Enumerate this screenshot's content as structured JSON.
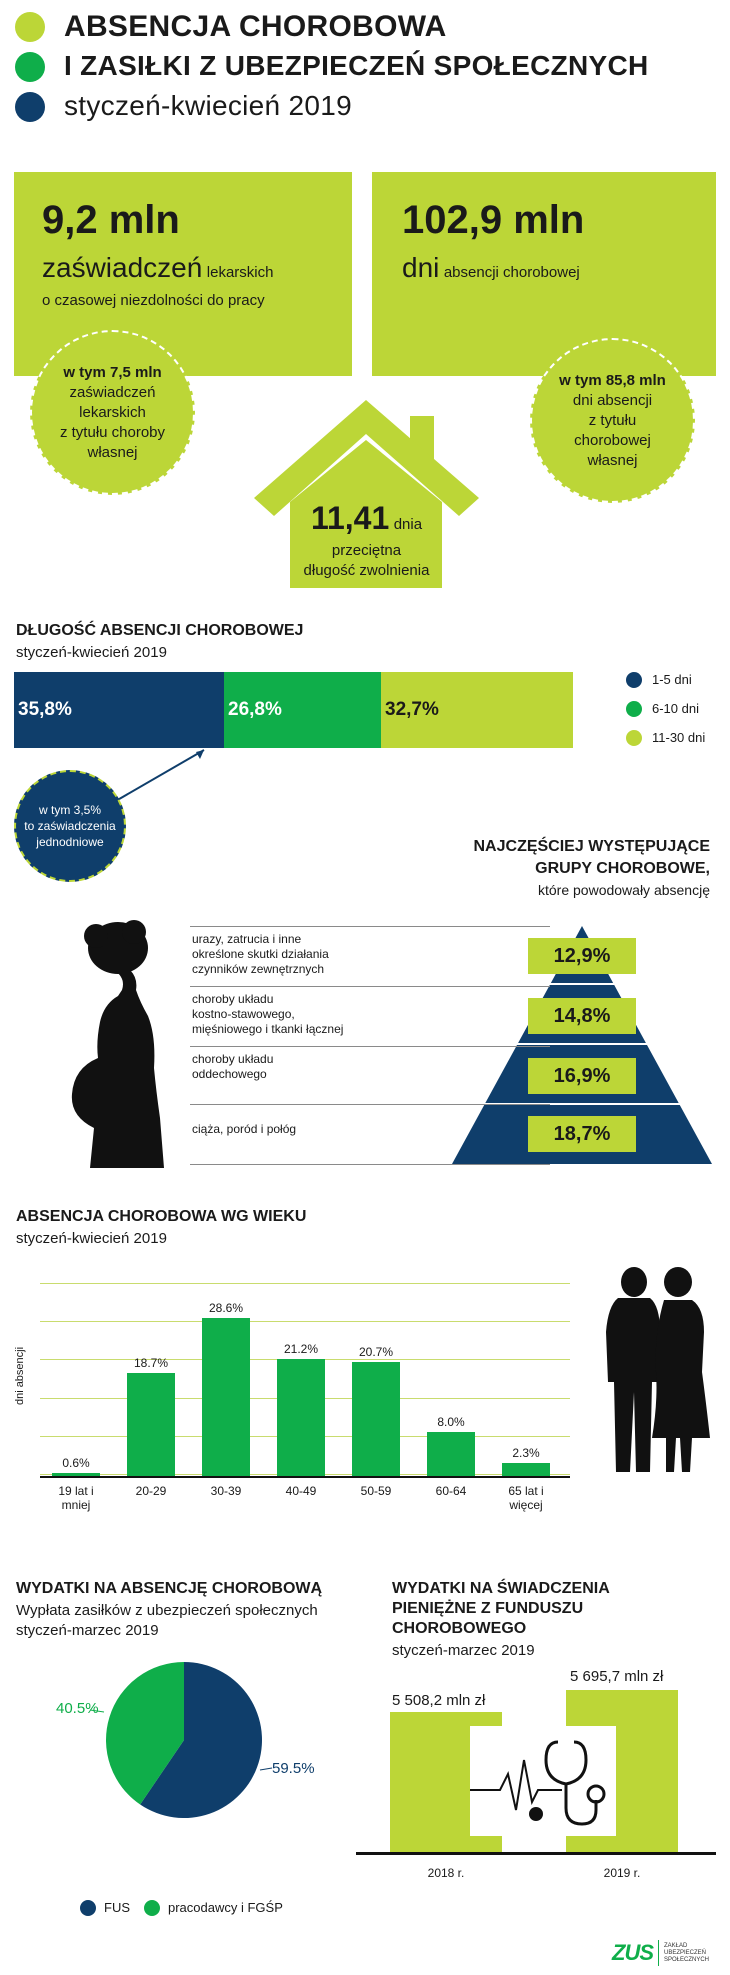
{
  "header": {
    "line1": "ABSENCJA CHOROBOWA",
    "line2": "I ZASIŁKI Z UBEZPIECZEŃ SPOŁECZNYCH",
    "line3": "styczeń-kwiecień 2019",
    "colors": {
      "lime": "#bcd637",
      "green": "#0fae4a",
      "navy": "#0f3e6b"
    }
  },
  "stats": {
    "left": {
      "number": "9,2 mln",
      "word": "zaświadczeń",
      "word_small": "lekarskich",
      "line2": "o czasowej niezdolności do pracy"
    },
    "right": {
      "number": "102,9 mln",
      "word": "dni",
      "word_small": "absencji chorobowej"
    },
    "left_circle": {
      "bold": "w tym 7,5 mln",
      "l1": "zaświadczeń",
      "l2": "lekarskich",
      "l3": "z tytułu choroby",
      "l4": "własnej"
    },
    "right_circle": {
      "bold": "w tym 85,8 mln",
      "l1": "dni absencji",
      "l2": "z tytułu",
      "l3": "chorobowej",
      "l4": "własnej"
    },
    "house": {
      "number": "11,41",
      "unit": "dnia",
      "l1": "przeciętna",
      "l2": "długość zwolnienia"
    }
  },
  "duration": {
    "title": "DŁUGOŚĆ ABSENCJI CHOROBOWEJ",
    "subtitle": "styczeń-kwiecień 2019",
    "segments": [
      {
        "label": "35,8%",
        "value": 35.8,
        "color": "#0f3e6b"
      },
      {
        "label": "26,8%",
        "value": 26.8,
        "color": "#0fae4a"
      },
      {
        "label": "32,7%",
        "value": 32.7,
        "color": "#bcd637"
      }
    ],
    "legend": [
      {
        "label": "1-5 dni",
        "color": "#0f3e6b"
      },
      {
        "label": "6-10 dni",
        "color": "#0fae4a"
      },
      {
        "label": "11-30 dni",
        "color": "#bcd637"
      }
    ],
    "note": {
      "l1": "w tym 3,5%",
      "l2": "to zaświadczenia",
      "l3": "jednodniowe"
    }
  },
  "groups": {
    "title1": "NAJCZĘŚCIEJ WYSTĘPUJĄCE",
    "title2": "GRUPY CHOROBOWE,",
    "subtitle": "które powodowały absencję",
    "items": [
      {
        "l1": "urazy, zatrucia i inne",
        "l2": "określone skutki działania",
        "l3": "czynników zewnętrznych",
        "value": "12,9%"
      },
      {
        "l1": "choroby układu",
        "l2": "kostno-stawowego,",
        "l3": "mięśniowego i tkanki łącznej",
        "value": "14,8%"
      },
      {
        "l1": "choroby układu",
        "l2": "oddechowego",
        "l3": "",
        "value": "16,9%"
      },
      {
        "l1": "ciąża, poród i połóg",
        "l2": "",
        "l3": "",
        "value": "18,7%"
      }
    ]
  },
  "chart_data": {
    "type": "bar",
    "title": "ABSENCJA CHOROBOWA WG WIEKU",
    "subtitle": "styczeń-kwiecień 2019",
    "ylabel": "dni absencji",
    "categories": [
      [
        "19 lat i",
        "mniej"
      ],
      [
        "20-29",
        ""
      ],
      [
        "30-39",
        ""
      ],
      [
        "40-49",
        ""
      ],
      [
        "50-59",
        ""
      ],
      [
        "60-64",
        ""
      ],
      [
        "65 lat i",
        "więcej"
      ]
    ],
    "values": [
      0.6,
      18.7,
      28.6,
      21.2,
      20.7,
      8.0,
      2.3
    ],
    "value_labels": [
      "0.6%",
      "18.7%",
      "28.6%",
      "21.2%",
      "20.7%",
      "8.0%",
      "2.3%"
    ],
    "ylim": [
      0,
      38
    ],
    "color": "#0fae4a"
  },
  "expenses": {
    "title": "WYDATKI NA ABSENCJĘ CHOROBOWĄ",
    "sub1": "Wypłata zasiłków z ubezpieczeń społecznych",
    "sub2": "styczeń-marzec 2019",
    "slices": [
      {
        "label": "59.5%",
        "value": 59.5,
        "color": "#0f3e6b",
        "legend": "FUS"
      },
      {
        "label": "40.5%",
        "value": 40.5,
        "color": "#0fae4a",
        "legend": "pracodawcy i FGŚP"
      }
    ]
  },
  "fund": {
    "title1": "WYDATKI NA ŚWIADCZENIA",
    "title2": "PIENIĘŻNE Z FUNDUSZU",
    "title3": "CHOROBOWEGO",
    "subtitle": "styczeń-marzec  2019",
    "bars": [
      {
        "value": "5 508,2 mln zł",
        "amount": 5508.2,
        "year": "2018 r."
      },
      {
        "value": "5 695,7 mln zł",
        "amount": 5695.7,
        "year": "2019 r."
      }
    ]
  },
  "logo": {
    "text": "ZUS",
    "l1": "ZAKŁAD",
    "l2": "UBEZPIECZEŃ",
    "l3": "SPOŁECZNYCH"
  }
}
